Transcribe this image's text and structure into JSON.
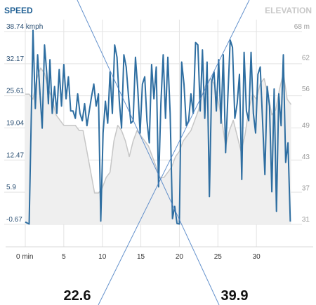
{
  "chart_data": {
    "type": "line",
    "title_left": "SPEED",
    "title_right": "ELEVATION",
    "x_ticks": [
      "0 min",
      "5",
      "10",
      "15",
      "20",
      "25",
      "30"
    ],
    "x_tick_values": [
      0,
      5,
      10,
      15,
      20,
      25,
      30
    ],
    "xlim": [
      0,
      35
    ],
    "y_left_ticks": [
      "38.74 kmph",
      "32.17",
      "25.61",
      "19.04",
      "12.47",
      "5.9",
      "-0.67"
    ],
    "y_left_tick_values": [
      38.74,
      32.17,
      25.61,
      19.04,
      12.47,
      5.9,
      -0.67
    ],
    "ylim_left": [
      -0.67,
      38.74
    ],
    "y_right_ticks": [
      "68 m",
      "62",
      "56",
      "49",
      "43",
      "37",
      "31"
    ],
    "y_right_tick_values": [
      68,
      62,
      56,
      49,
      43,
      37,
      31
    ],
    "ylim_right": [
      31,
      68
    ],
    "grid": true,
    "series": [
      {
        "name": "SPEED",
        "axis": "left",
        "color": "#2e6ea1",
        "x": [
          0,
          0.5,
          1.0,
          1.3,
          1.6,
          1.9,
          2.2,
          2.5,
          2.8,
          3.0,
          3.2,
          3.5,
          3.8,
          4.1,
          4.4,
          4.7,
          5.0,
          5.3,
          5.6,
          5.9,
          6.2,
          6.5,
          6.8,
          7.1,
          7.4,
          7.7,
          8.0,
          8.3,
          8.6,
          8.9,
          9.2,
          9.5,
          9.8,
          10.1,
          10.4,
          10.7,
          11.0,
          11.3,
          11.6,
          11.9,
          12.2,
          12.5,
          12.8,
          13.1,
          13.4,
          13.7,
          14.0,
          14.3,
          14.6,
          14.9,
          15.2,
          15.5,
          15.8,
          16.1,
          16.4,
          16.7,
          17.0,
          17.3,
          17.6,
          17.9,
          18.2,
          18.5,
          18.8,
          19.1,
          19.4,
          19.7,
          20.0,
          20.3,
          20.6,
          20.9,
          21.2,
          21.5,
          21.8,
          22.1,
          22.4,
          22.7,
          23.0,
          23.3,
          23.6,
          23.9,
          24.2,
          24.5,
          24.8,
          25.1,
          25.4,
          25.7,
          26.0,
          26.3,
          26.6,
          26.9,
          27.2,
          27.5,
          27.8,
          28.1,
          28.4,
          28.7,
          29.0,
          29.3,
          29.6,
          29.9,
          30.2,
          30.5,
          30.8,
          31.1,
          31.4,
          31.7,
          32.0,
          32.3,
          32.6,
          32.9,
          33.2,
          33.5,
          33.8,
          34.1,
          34.4
        ],
        "values": [
          -0.2,
          -0.6,
          39.0,
          23.0,
          34.0,
          26.5,
          19.0,
          36.0,
          30.0,
          24.0,
          33.0,
          22.0,
          27.5,
          22.0,
          31.0,
          23.5,
          32.0,
          25.0,
          29.5,
          22.5,
          22.5,
          21.0,
          26.0,
          22.0,
          20.5,
          24.0,
          19.5,
          22.5,
          25.5,
          28.0,
          23.5,
          26.0,
          0.0,
          18.0,
          24.5,
          20.0,
          30.5,
          22.0,
          36.0,
          33.5,
          24.5,
          19.0,
          34.0,
          31.5,
          25.5,
          20.0,
          20.5,
          33.5,
          27.0,
          18.0,
          28.0,
          29.5,
          20.5,
          16.0,
          32.0,
          25.0,
          31.5,
          7.0,
          24.0,
          34.0,
          21.0,
          33.5,
          22.0,
          0.5,
          3.0,
          -0.5,
          -0.6,
          32.5,
          28.0,
          19.5,
          20.5,
          26.0,
          22.0,
          36.5,
          36.0,
          22.5,
          35.0,
          21.0,
          32.5,
          5.0,
          28.5,
          30.5,
          22.5,
          33.0,
          20.0,
          34.0,
          14.0,
          25.5,
          37.0,
          35.5,
          21.0,
          24.0,
          30.0,
          8.5,
          34.5,
          22.5,
          20.5,
          34.5,
          22.0,
          18.0,
          30.0,
          31.5,
          20.5,
          9.5,
          27.5,
          23.5,
          6.0,
          27.0,
          2.0,
          26.0,
          19.5,
          34.0,
          12.0,
          16.0,
          -0.1
        ]
      },
      {
        "name": "ELEVATION",
        "axis": "right",
        "color": "#c6c6c6",
        "x": [
          0,
          0.5,
          1.0,
          1.5,
          2.0,
          2.5,
          3.0,
          3.5,
          4.0,
          4.5,
          5.0,
          5.5,
          6.0,
          6.5,
          7.0,
          7.5,
          8.0,
          8.5,
          9.0,
          9.5,
          10.0,
          10.5,
          11.0,
          11.5,
          12.0,
          12.5,
          13.0,
          13.5,
          14.0,
          14.5,
          15.0,
          15.5,
          16.0,
          16.5,
          17.0,
          17.5,
          18.0,
          18.5,
          19.0,
          19.5,
          20.0,
          20.5,
          21.0,
          21.5,
          22.0,
          22.5,
          23.0,
          23.5,
          24.0,
          24.5,
          25.0,
          25.5,
          26.0,
          26.5,
          27.0,
          27.5,
          28.0,
          28.5,
          29.0,
          29.5,
          30.0,
          30.5,
          31.0,
          31.5,
          32.0,
          32.5,
          33.0,
          33.5,
          34.0,
          34.5
        ],
        "values": [
          56,
          56,
          55,
          59,
          61,
          60,
          57,
          55,
          52,
          51,
          50,
          50,
          50,
          50,
          49,
          49,
          45,
          41,
          37,
          37,
          38,
          40,
          41,
          47,
          50,
          49,
          47,
          44,
          47,
          49,
          48,
          47,
          46,
          44,
          42,
          40,
          40,
          41,
          42,
          44,
          45,
          47,
          48,
          49,
          51,
          53,
          56,
          58,
          59,
          58,
          55,
          51,
          46,
          49,
          51,
          48,
          45,
          48,
          53,
          56,
          55,
          58,
          59,
          56,
          52,
          53,
          57,
          60,
          55,
          54
        ]
      }
    ],
    "annotations": [
      {
        "text": "22.6",
        "role": "left-value"
      },
      {
        "text": "39.9",
        "role": "right-value"
      }
    ]
  },
  "footer": {
    "left_value": "22.6",
    "right_value": "39.9"
  }
}
